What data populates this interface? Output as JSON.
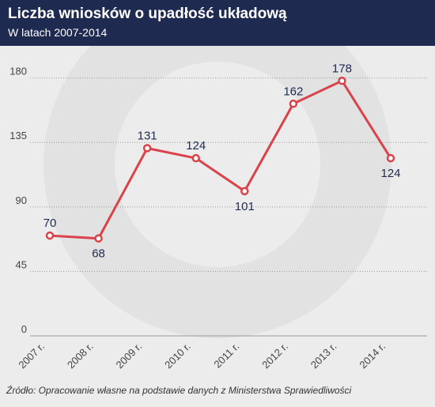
{
  "title": "Liczba wniosków o upadłość układową",
  "subtitle": "W latach 2007-2014",
  "source": "Źródło: Opracowanie własne na podstawie danych z Ministerstwa Sprawiedliwości",
  "colors": {
    "header": "#1e2a4f",
    "background": "#ececec",
    "line": "#d9434a",
    "label": "#1e2a4f",
    "grid": "#9a9a9a"
  },
  "chart_data": {
    "type": "line",
    "categories": [
      "2007 r.",
      "2008 r.",
      "2009 r.",
      "2010 r.",
      "2011 r.",
      "2012 r.",
      "2013 r.",
      "2014 r."
    ],
    "values": [
      70,
      68,
      131,
      124,
      101,
      162,
      178,
      124
    ],
    "data_labels": [
      "70",
      "68",
      "131",
      "124",
      "101",
      "162",
      "178",
      "124"
    ],
    "label_positions": [
      "above",
      "below",
      "above",
      "above",
      "below",
      "above",
      "above",
      "below"
    ],
    "yticks": [
      0,
      45,
      90,
      135,
      180
    ],
    "ylim": [
      0,
      198
    ],
    "grid": true,
    "gridlines": "horizontal-dotted"
  }
}
